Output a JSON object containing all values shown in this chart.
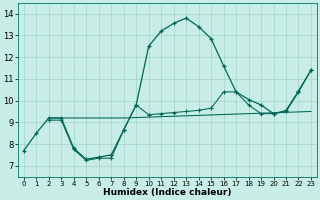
{
  "xlabel": "Humidex (Indice chaleur)",
  "bg_color": "#c8ede6",
  "grid_color": "#a0d4c8",
  "line_color": "#006655",
  "xlim": [
    -0.5,
    23.5
  ],
  "ylim": [
    6.5,
    14.5
  ],
  "xticks": [
    0,
    1,
    2,
    3,
    4,
    5,
    6,
    7,
    8,
    9,
    10,
    11,
    12,
    13,
    14,
    15,
    16,
    17,
    18,
    19,
    20,
    21,
    22,
    23
  ],
  "yticks": [
    7,
    8,
    9,
    10,
    11,
    12,
    13,
    14
  ],
  "curve1_x": [
    0,
    1,
    2,
    3,
    4,
    5,
    6,
    7,
    8,
    9,
    10,
    11,
    12,
    13,
    14,
    15,
    16,
    17,
    18,
    19,
    20,
    21,
    22,
    23
  ],
  "curve1_y": [
    7.7,
    8.5,
    9.2,
    9.2,
    7.8,
    7.3,
    7.4,
    7.5,
    8.65,
    9.8,
    12.5,
    13.2,
    13.55,
    13.8,
    13.4,
    12.85,
    11.6,
    10.4,
    10.05,
    9.8,
    9.4,
    9.5,
    10.4,
    11.4
  ],
  "curve2_x": [
    2,
    3,
    4,
    5,
    6,
    7,
    8,
    9,
    10,
    11,
    12,
    13,
    14,
    15,
    16,
    17,
    18,
    19,
    20,
    21,
    22,
    23
  ],
  "curve2_y": [
    9.2,
    9.2,
    9.2,
    9.2,
    9.2,
    9.2,
    9.2,
    9.22,
    9.24,
    9.26,
    9.28,
    9.3,
    9.32,
    9.34,
    9.36,
    9.38,
    9.4,
    9.42,
    9.44,
    9.46,
    9.48,
    9.5
  ],
  "curve3_x": [
    2,
    3,
    4,
    5,
    6,
    7,
    8,
    9,
    10,
    11,
    12,
    13,
    14,
    15,
    16,
    17,
    18,
    19,
    20,
    21,
    22,
    23
  ],
  "curve3_y": [
    9.1,
    9.1,
    7.75,
    7.25,
    7.35,
    7.35,
    8.65,
    9.8,
    9.35,
    9.4,
    9.45,
    9.5,
    9.55,
    9.65,
    10.4,
    10.4,
    9.8,
    9.4,
    9.4,
    9.55,
    10.45,
    11.4
  ]
}
